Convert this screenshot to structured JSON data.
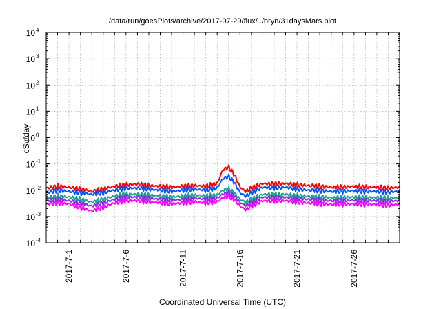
{
  "chart_data": {
    "type": "line",
    "title": "/data/run/goesPlots/archive/2017-07-29/flux/../bryn/31daysMars.plot",
    "xlabel": "Coordinated Universal Time (UTC)",
    "ylabel": "cSv/day",
    "yscale": "log",
    "ylim": [
      0.0001,
      10000
    ],
    "xlim_days": [
      0,
      31
    ],
    "grid": true,
    "y_ticks": [
      {
        "base": "10",
        "exp": "-4",
        "value": 0.0001
      },
      {
        "base": "10",
        "exp": "-3",
        "value": 0.001
      },
      {
        "base": "10",
        "exp": "-2",
        "value": 0.01
      },
      {
        "base": "10",
        "exp": "-1",
        "value": 0.1
      },
      {
        "base": "10",
        "exp": "0",
        "value": 1
      },
      {
        "base": "10",
        "exp": "1",
        "value": 10
      },
      {
        "base": "10",
        "exp": "2",
        "value": 100
      },
      {
        "base": "10",
        "exp": "3",
        "value": 1000
      },
      {
        "base": "10",
        "exp": "4",
        "value": 10000
      }
    ],
    "x_ticks": [
      {
        "label": "2017-7-1",
        "day": 2
      },
      {
        "label": "2017-7-6",
        "day": 7
      },
      {
        "label": "2017-7-11",
        "day": 12
      },
      {
        "label": "2017-7-16",
        "day": 17
      },
      {
        "label": "2017-7-21",
        "day": 22
      },
      {
        "label": "2017-7-26",
        "day": 27
      }
    ],
    "series": [
      {
        "name": "red",
        "color": "#ff0000",
        "days": [
          0,
          1,
          2,
          3,
          4,
          5,
          6,
          7,
          8,
          9,
          10,
          11,
          12,
          13,
          14,
          15,
          15.5,
          16,
          16.5,
          17,
          17.5,
          18,
          19,
          20,
          21,
          22,
          23,
          24,
          25,
          26,
          27,
          28,
          29,
          30,
          31
        ],
        "values": [
          0.012,
          0.014,
          0.013,
          0.011,
          0.009,
          0.011,
          0.014,
          0.016,
          0.017,
          0.015,
          0.014,
          0.013,
          0.014,
          0.015,
          0.014,
          0.018,
          0.06,
          0.075,
          0.04,
          0.013,
          0.009,
          0.012,
          0.018,
          0.017,
          0.018,
          0.016,
          0.015,
          0.014,
          0.013,
          0.013,
          0.014,
          0.013,
          0.013,
          0.012,
          0.013
        ]
      },
      {
        "name": "blue",
        "color": "#0055ff",
        "days": [
          0,
          1,
          2,
          3,
          4,
          5,
          6,
          7,
          8,
          9,
          10,
          11,
          12,
          13,
          14,
          15,
          15.5,
          16,
          16.5,
          17,
          17.5,
          18,
          19,
          20,
          21,
          22,
          23,
          24,
          25,
          26,
          27,
          28,
          29,
          30,
          31
        ],
        "values": [
          0.008,
          0.01,
          0.009,
          0.008,
          0.007,
          0.008,
          0.01,
          0.012,
          0.012,
          0.011,
          0.01,
          0.009,
          0.01,
          0.011,
          0.01,
          0.012,
          0.028,
          0.033,
          0.02,
          0.008,
          0.006,
          0.008,
          0.013,
          0.012,
          0.013,
          0.011,
          0.01,
          0.0095,
          0.009,
          0.009,
          0.0095,
          0.009,
          0.009,
          0.0085,
          0.009
        ]
      },
      {
        "name": "teal",
        "color": "#20a090",
        "days": [
          0,
          1,
          2,
          3,
          4,
          5,
          6,
          7,
          8,
          9,
          10,
          11,
          12,
          13,
          14,
          15,
          15.5,
          16,
          16.5,
          17,
          17.5,
          18,
          19,
          20,
          21,
          22,
          23,
          24,
          25,
          26,
          27,
          28,
          29,
          30,
          31
        ],
        "values": [
          0.005,
          0.006,
          0.0055,
          0.0045,
          0.0035,
          0.0045,
          0.006,
          0.007,
          0.007,
          0.0065,
          0.006,
          0.0055,
          0.006,
          0.0065,
          0.006,
          0.0065,
          0.01,
          0.011,
          0.008,
          0.0045,
          0.0035,
          0.0045,
          0.007,
          0.0068,
          0.007,
          0.0062,
          0.0058,
          0.0055,
          0.0052,
          0.0052,
          0.0055,
          0.0052,
          0.0052,
          0.005,
          0.0052
        ]
      },
      {
        "name": "purple",
        "color": "#8a2be2",
        "days": [
          0,
          1,
          2,
          3,
          4,
          5,
          6,
          7,
          8,
          9,
          10,
          11,
          12,
          13,
          14,
          15,
          15.5,
          16,
          16.5,
          17,
          17.5,
          18,
          19,
          20,
          21,
          22,
          23,
          24,
          25,
          26,
          27,
          28,
          29,
          30,
          31
        ],
        "values": [
          0.004,
          0.0045,
          0.004,
          0.0032,
          0.0025,
          0.0032,
          0.0045,
          0.0055,
          0.0055,
          0.005,
          0.0045,
          0.0042,
          0.0045,
          0.005,
          0.0046,
          0.005,
          0.0072,
          0.008,
          0.006,
          0.0034,
          0.0026,
          0.0034,
          0.0055,
          0.0052,
          0.0054,
          0.0048,
          0.0045,
          0.0042,
          0.004,
          0.004,
          0.0042,
          0.004,
          0.004,
          0.0038,
          0.004
        ]
      },
      {
        "name": "magenta",
        "color": "#ff00ff",
        "days": [
          0,
          1,
          2,
          3,
          4,
          5,
          6,
          7,
          8,
          9,
          10,
          11,
          12,
          13,
          14,
          15,
          15.5,
          16,
          16.5,
          17,
          17.5,
          18,
          19,
          20,
          21,
          22,
          23,
          24,
          25,
          26,
          27,
          28,
          29,
          30,
          31
        ],
        "values": [
          0.003,
          0.0033,
          0.003,
          0.0022,
          0.0016,
          0.0022,
          0.0033,
          0.004,
          0.004,
          0.0036,
          0.0033,
          0.003,
          0.0033,
          0.0036,
          0.0033,
          0.0036,
          0.0052,
          0.0058,
          0.0045,
          0.0025,
          0.0018,
          0.0025,
          0.004,
          0.0038,
          0.004,
          0.0035,
          0.0033,
          0.003,
          0.0029,
          0.0029,
          0.003,
          0.0029,
          0.0029,
          0.0027,
          0.0029
        ]
      }
    ]
  }
}
